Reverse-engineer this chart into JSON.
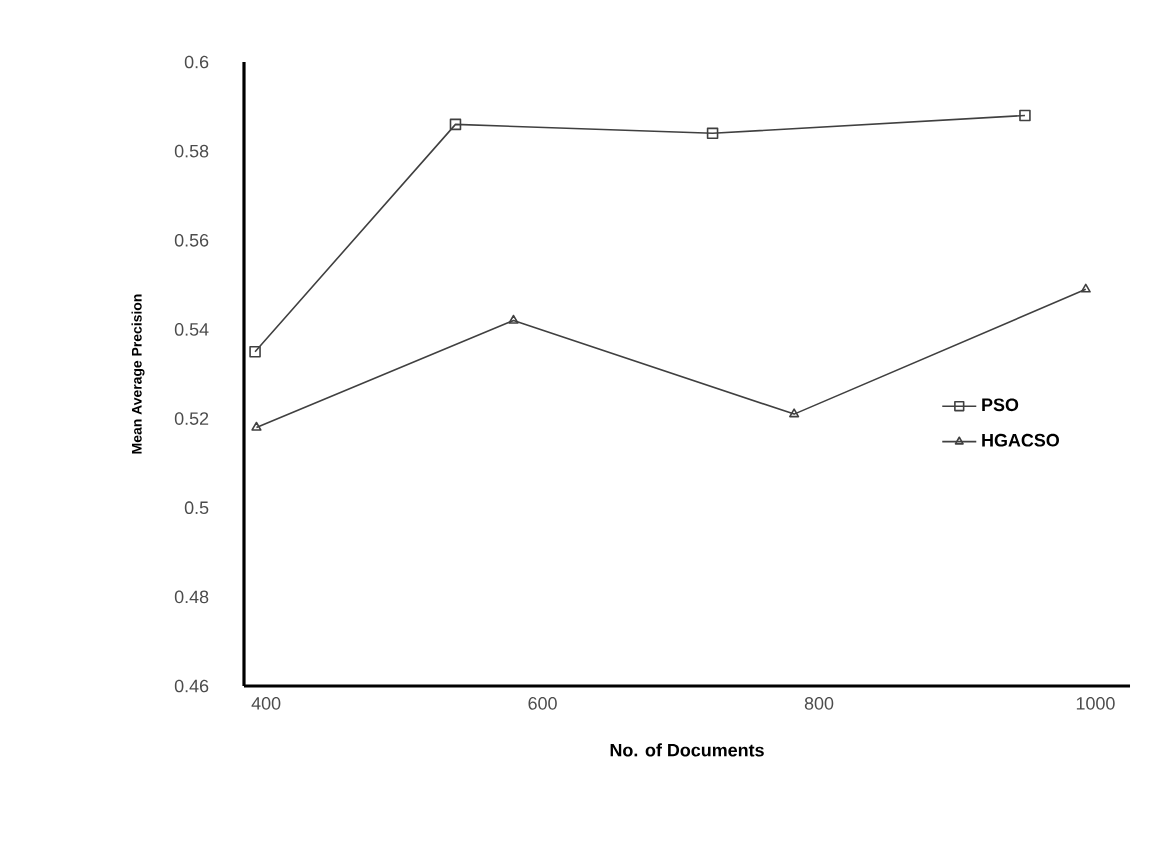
{
  "chart_data": {
    "type": "line",
    "xlabel": "No. of Documents",
    "ylabel": "Mean Average Precision",
    "xlim": [
      384,
      1025
    ],
    "ylim": [
      0.46,
      0.6
    ],
    "xticks": [
      400,
      600,
      800,
      1000
    ],
    "yticks": [
      0.46,
      0.48,
      0.5,
      0.52,
      0.54,
      0.56,
      0.58,
      0.6
    ],
    "grid": false,
    "legend": "right",
    "series": [
      {
        "name": "PSO",
        "color": "#404040",
        "marker": "square",
        "x": [
          392,
          537,
          723,
          949
        ],
        "values": [
          0.535,
          0.586,
          0.584,
          0.588
        ]
      },
      {
        "name": "HGACSO",
        "color": "#404040",
        "marker": "triangle",
        "x": [
          393,
          579,
          782,
          993
        ],
        "values": [
          0.518,
          0.542,
          0.521,
          0.549
        ]
      }
    ]
  }
}
